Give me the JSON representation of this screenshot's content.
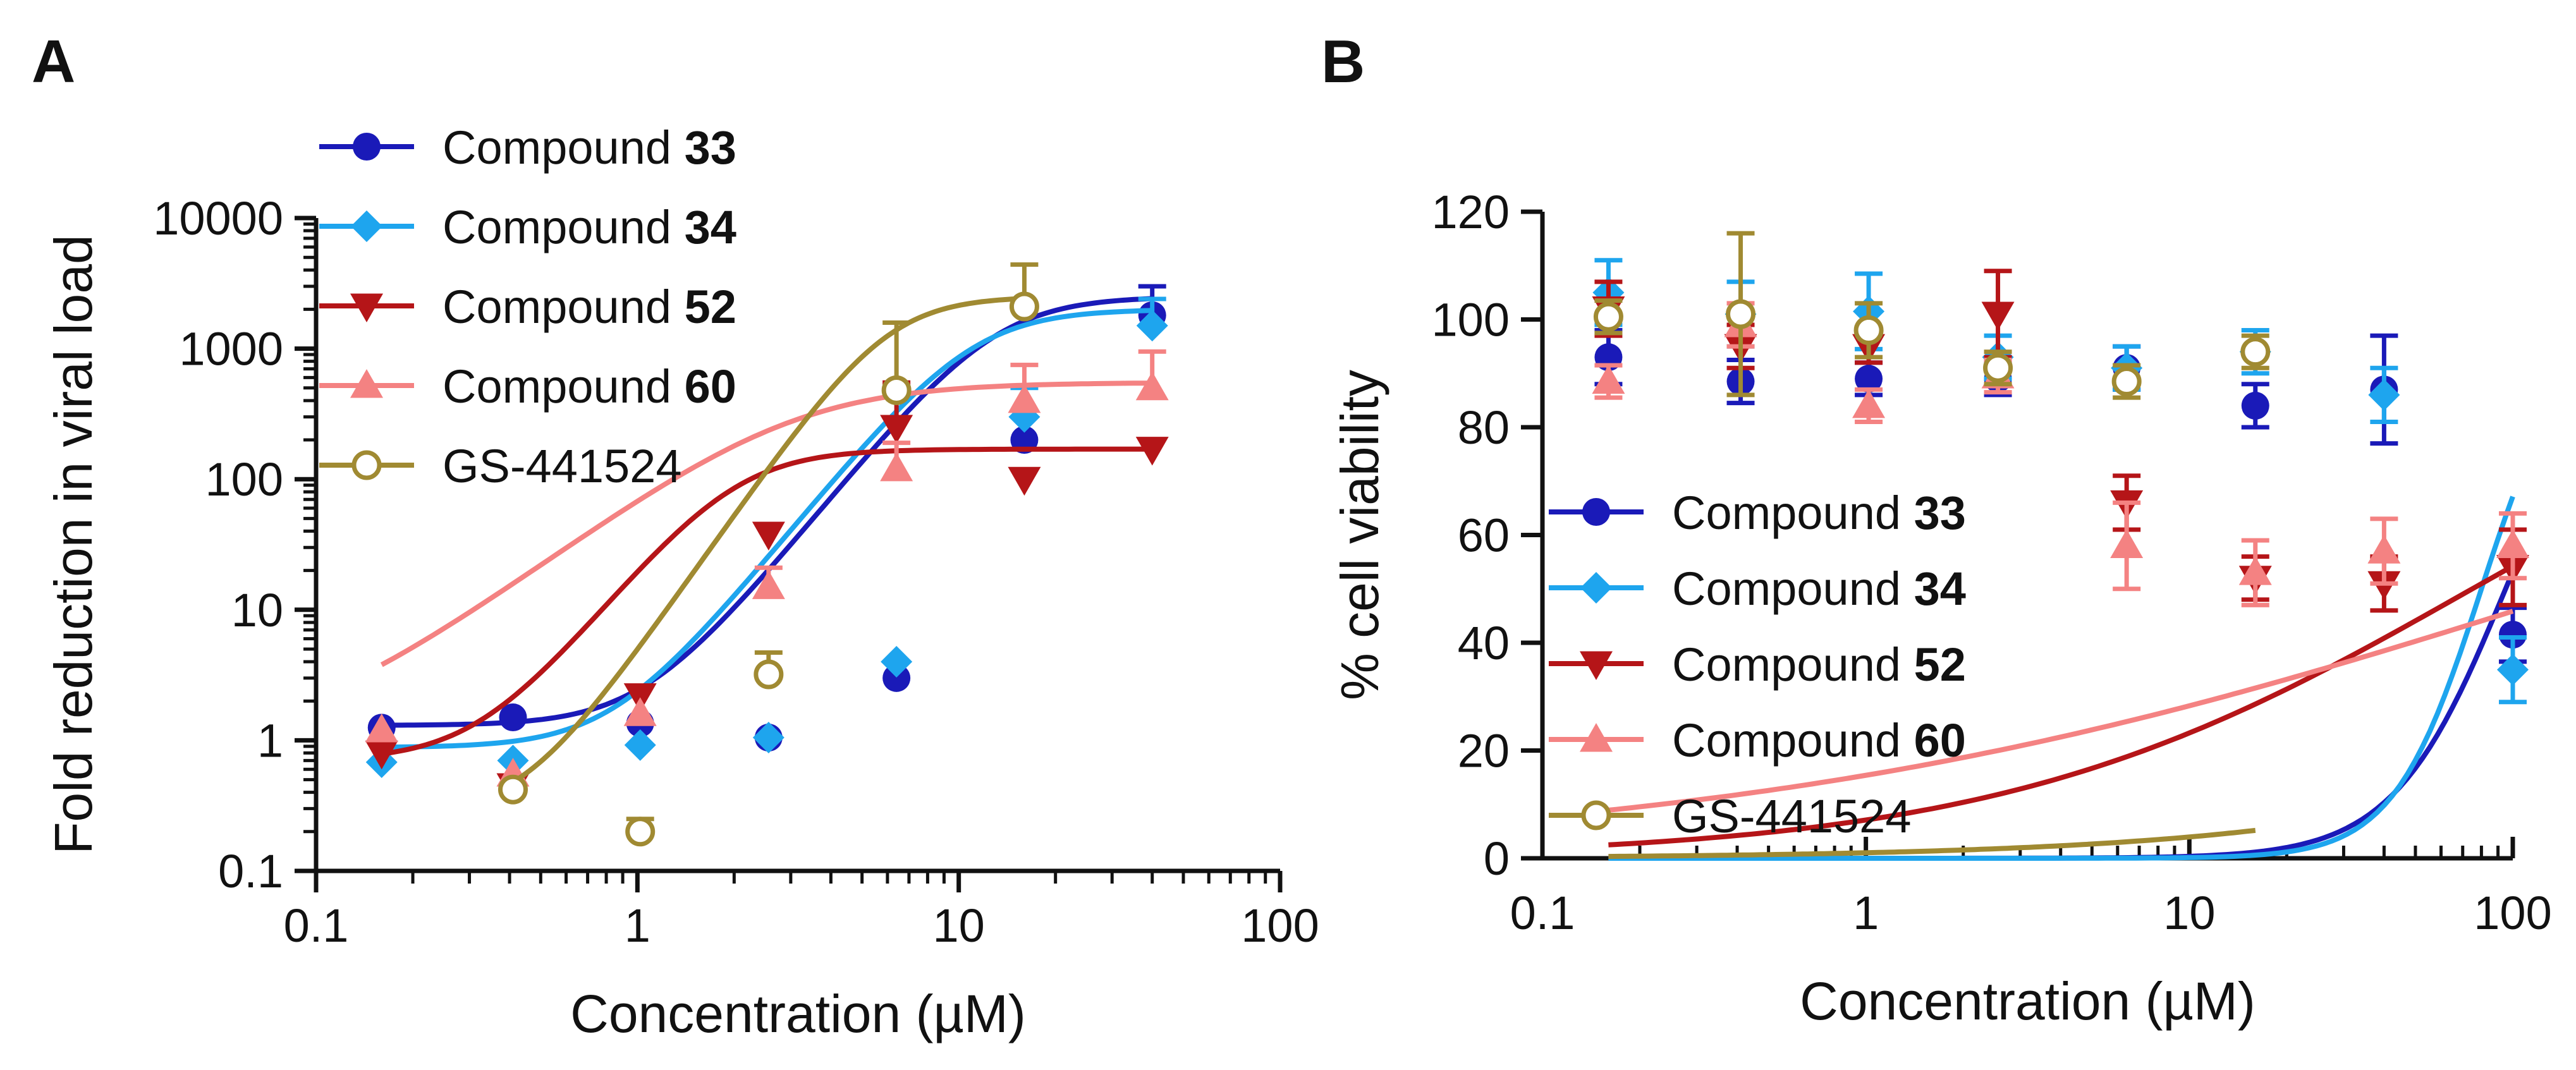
{
  "chart_data": [
    {
      "panel": "A",
      "type": "scatter",
      "xlabel": "Concentration (µM)",
      "ylabel": "Fold reduction in viral load",
      "xscale": "log",
      "yscale": "log",
      "xlim": [
        0.1,
        100
      ],
      "ylim": [
        0.1,
        10000
      ],
      "xticks": [
        0.1,
        1,
        10,
        100
      ],
      "xtick_labels": [
        "0.1",
        "1",
        "10",
        "100"
      ],
      "yticks": [
        0.1,
        1,
        10,
        100,
        1000,
        10000
      ],
      "ytick_labels": [
        "0.1",
        "1",
        "10",
        "100",
        "1000",
        "10000"
      ],
      "legend_position": "top-left",
      "series": [
        {
          "name": "Compound",
          "num": "33",
          "color": "#1a1ab8",
          "marker": "circle",
          "x": [
            0.16,
            0.41,
            1.02,
            2.56,
            6.4,
            16,
            40
          ],
          "y": [
            1.25,
            1.5,
            1.35,
            1.05,
            3.0,
            200,
            1800
          ],
          "err": [
            0,
            0,
            0,
            0,
            0,
            0,
            1200
          ],
          "fit": {
            "bottom": 1.3,
            "top": 2500,
            "ec50": 13,
            "hill": 3.0,
            "xmin": 0.16,
            "xmax": 40
          }
        },
        {
          "name": "Compound",
          "num": "34",
          "color": "#1ea5ee",
          "marker": "diamond",
          "x": [
            0.16,
            0.41,
            1.02,
            2.56,
            6.4,
            16,
            40
          ],
          "y": [
            0.68,
            0.7,
            0.92,
            1.05,
            4.0,
            300,
            1500
          ],
          "err": [
            0,
            0,
            0,
            0,
            0,
            200,
            900
          ],
          "fit": {
            "bottom": 0.88,
            "top": 2000,
            "ec50": 11,
            "hill": 3.0,
            "xmin": 0.16,
            "xmax": 40
          }
        },
        {
          "name": "Compound",
          "num": "52",
          "color": "#b51518",
          "marker": "triangle-down",
          "x": [
            0.16,
            0.41,
            1.02,
            2.56,
            6.4,
            16,
            40
          ],
          "y": [
            0.8,
            0.45,
            2.2,
            38,
            250,
            100,
            170
          ],
          "err": [
            0,
            0,
            0,
            0,
            300,
            0,
            0
          ],
          "fit": {
            "bottom": 0.7,
            "top": 170,
            "ec50": 2.0,
            "hill": 3.0,
            "xmin": 0.16,
            "xmax": 40
          }
        },
        {
          "name": "Compound",
          "num": "60",
          "color": "#f48282",
          "marker": "triangle-up",
          "x": [
            0.16,
            0.41,
            1.02,
            2.56,
            6.4,
            16,
            40
          ],
          "y": [
            1.2,
            0.55,
            1.6,
            15,
            120,
            400,
            500
          ],
          "err": [
            0,
            0,
            0,
            6,
            70,
            350,
            450
          ],
          "fit": {
            "bottom": 1.0,
            "top": 550,
            "ec50": 3.0,
            "hill": 1.8,
            "xmin": 0.16,
            "xmax": 40
          }
        },
        {
          "name": "GS-441524",
          "num": "",
          "color": "#a08a32",
          "marker": "open-circle",
          "x": [
            0.41,
            1.02,
            2.56,
            6.4,
            16
          ],
          "y": [
            0.42,
            0.2,
            3.2,
            480,
            2100
          ],
          "err": [
            0,
            0.05,
            1.5,
            1100,
            2300
          ],
          "fit": {
            "bottom": 0.27,
            "top": 2500,
            "ec50": 6.0,
            "hill": 3.5,
            "xmin": 0.41,
            "xmax": 16
          }
        }
      ]
    },
    {
      "panel": "B",
      "type": "scatter",
      "xlabel": "Concentration (µM)",
      "ylabel": "% cell viability",
      "xscale": "log",
      "yscale": "linear",
      "xlim": [
        0.1,
        100
      ],
      "ylim": [
        0,
        120
      ],
      "xticks": [
        0.1,
        1,
        10,
        100
      ],
      "xtick_labels": [
        "0.1",
        "1",
        "10",
        "100"
      ],
      "yticks": [
        0,
        20,
        40,
        60,
        80,
        100,
        120
      ],
      "ytick_labels": [
        "0",
        "20",
        "40",
        "60",
        "80",
        "100",
        "120"
      ],
      "legend_position": "bottom-left",
      "series": [
        {
          "name": "Compound",
          "num": "33",
          "color": "#1a1ab8",
          "marker": "circle",
          "x": [
            0.16,
            0.41,
            1.02,
            2.56,
            6.4,
            16,
            40,
            100
          ],
          "y": [
            93,
            88.5,
            89,
            89,
            91,
            84,
            87,
            41.5
          ],
          "err": [
            5,
            4,
            3,
            3,
            4,
            4,
            10,
            5
          ],
          "fit": {
            "bottom": 0,
            "top": 100,
            "ec50": 95,
            "hill": 2.5,
            "xmin": 0.16,
            "xmax": 100
          }
        },
        {
          "name": "Compound",
          "num": "34",
          "color": "#1ea5ee",
          "marker": "diamond",
          "x": [
            0.16,
            0.41,
            1.02,
            2.56,
            6.4,
            16,
            40,
            100
          ],
          "y": [
            105,
            101,
            101.5,
            93,
            91,
            94,
            86,
            35
          ],
          "err": [
            6,
            6,
            7,
            4,
            4,
            4,
            5,
            6
          ],
          "fit": {
            "bottom": 0,
            "top": 100,
            "ec50": 80,
            "hill": 3.2,
            "xmin": 0.16,
            "xmax": 100
          }
        },
        {
          "name": "Compound",
          "num": "52",
          "color": "#b51518",
          "marker": "triangle-down",
          "x": [
            0.16,
            0.41,
            1.02,
            2.56,
            6.4,
            16,
            40,
            100
          ],
          "y": [
            102,
            95,
            95,
            101,
            66,
            52,
            51,
            54
          ],
          "err": [
            5,
            4,
            3,
            8,
            5,
            4,
            5,
            7
          ],
          "fit": {
            "bottom": 0,
            "top": 98,
            "ec50": 70,
            "hill": 0.6,
            "xmin": 0.16,
            "xmax": 100
          }
        },
        {
          "name": "Compound",
          "num": "60",
          "color": "#f48282",
          "marker": "triangle-up",
          "x": [
            0.16,
            0.41,
            1.02,
            2.56,
            6.4,
            16,
            40,
            100
          ],
          "y": [
            88.5,
            99,
            84,
            89.5,
            58,
            53,
            57,
            58
          ],
          "err": [
            3,
            4,
            3,
            3,
            8,
            6,
            6,
            6
          ],
          "fit": {
            "bottom": 0,
            "top": 96,
            "ec50": 130,
            "hill": 0.34,
            "xmin": 0.16,
            "xmax": 100
          }
        },
        {
          "name": "GS-441524",
          "num": "",
          "color": "#a08a32",
          "marker": "open-circle",
          "x": [
            0.16,
            0.41,
            1.02,
            2.56,
            6.4,
            16
          ],
          "y": [
            100.5,
            101,
            98,
            91,
            88.5,
            94
          ],
          "err": [
            3,
            15,
            5,
            3,
            3,
            3
          ],
          "fit": {
            "bottom": 0,
            "top": 99,
            "ec50": 2000,
            "hill": 0.6,
            "xmin": 0.16,
            "xmax": 16
          }
        }
      ]
    }
  ]
}
